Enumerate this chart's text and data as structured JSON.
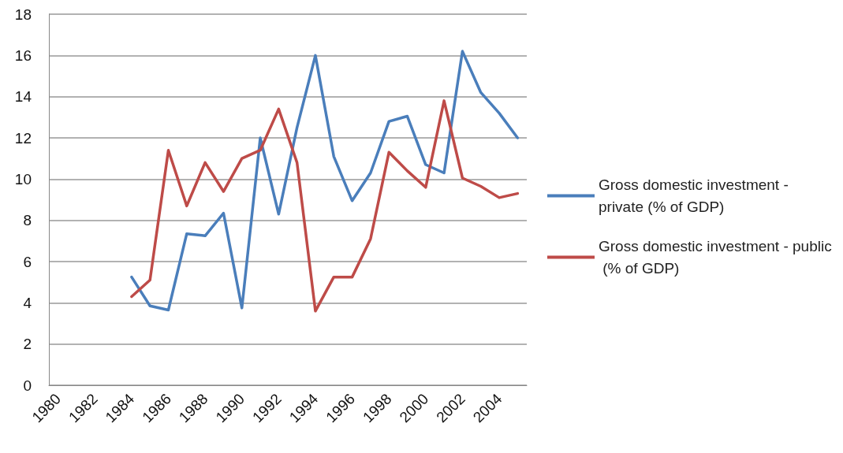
{
  "chart_data": {
    "type": "line",
    "categories": [
      "1980",
      null,
      "1982",
      null,
      "1984",
      null,
      "1986",
      null,
      "1988",
      null,
      "1990",
      null,
      "1992",
      null,
      "1994",
      null,
      "1996",
      null,
      "1998",
      null,
      "2000",
      null,
      "2002",
      null,
      "2004",
      null
    ],
    "series": [
      {
        "name": "Gross domestic investment - private (% of GDP)",
        "color": "#4a7ebb",
        "values": [
          null,
          null,
          null,
          null,
          5.25,
          3.85,
          3.65,
          7.35,
          7.25,
          8.35,
          3.75,
          12.0,
          8.3,
          12.5,
          16.0,
          11.1,
          8.95,
          10.3,
          12.8,
          13.05,
          10.7,
          10.3,
          16.2,
          14.2,
          13.2,
          12.0
        ]
      },
      {
        "name": "Gross domestic investment - public (% of GDP)",
        "color": "#be4b48",
        "values": [
          null,
          null,
          null,
          null,
          4.3,
          5.1,
          11.4,
          8.7,
          10.8,
          9.4,
          11.0,
          11.4,
          13.4,
          10.8,
          3.6,
          5.25,
          5.25,
          7.1,
          11.3,
          10.4,
          9.6,
          13.8,
          10.05,
          9.65,
          9.1,
          9.3
        ]
      }
    ],
    "ylim": [
      0,
      18
    ],
    "yticks": [
      0,
      2,
      4,
      6,
      8,
      10,
      12,
      14,
      16,
      18
    ],
    "grid": "y",
    "legend": "right",
    "marker": "none",
    "line_style": "solid"
  }
}
